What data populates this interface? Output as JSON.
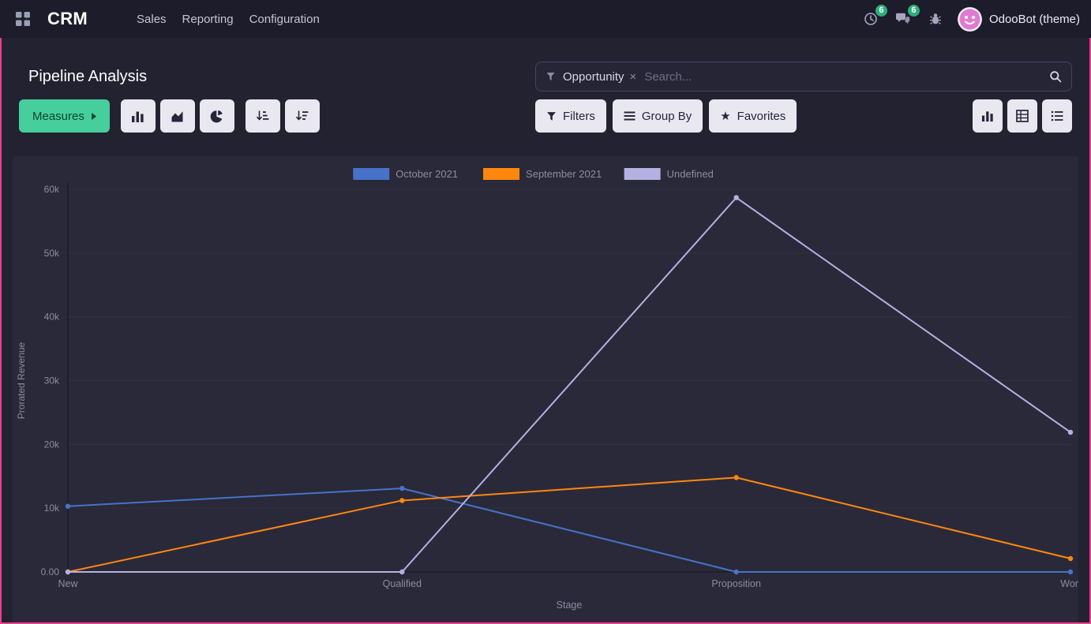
{
  "navbar": {
    "app_name": "CRM",
    "menu": [
      "Sales",
      "Reporting",
      "Configuration"
    ],
    "activities_count": "6",
    "messages_count": "6",
    "user_name": "OdooBot (theme)"
  },
  "control_panel": {
    "title": "Pipeline Analysis",
    "measures_label": "Measures",
    "filters_label": "Filters",
    "group_by_label": "Group By",
    "favorites_label": "Favorites"
  },
  "search": {
    "facet_label": "Opportunity",
    "placeholder": "Search..."
  },
  "colors": {
    "accent_green": "#46cf9d",
    "frame_pink": "#ee3d8f",
    "badge_green": "#2eae7c",
    "panel_bg": "#2a2939",
    "navbar_bg": "#1d1c2a"
  },
  "chart_data": {
    "type": "line",
    "title": "",
    "xlabel": "Stage",
    "ylabel": "Prorated Revenue",
    "categories": [
      "New",
      "Qualified",
      "Proposition",
      "Won"
    ],
    "series": [
      {
        "name": "October 2021",
        "color": "#4673c8",
        "values": [
          10300,
          13100,
          0,
          0
        ]
      },
      {
        "name": "September 2021",
        "color": "#ff870f",
        "values": [
          0,
          11200,
          14800,
          2100
        ]
      },
      {
        "name": "Undefined",
        "color": "#b5b1e2",
        "values": [
          0,
          0,
          58700,
          21900
        ]
      }
    ],
    "ylim": [
      0,
      60000
    ],
    "yticks": [
      {
        "v": 0,
        "label": "0.00"
      },
      {
        "v": 10000,
        "label": "10k"
      },
      {
        "v": 20000,
        "label": "20k"
      },
      {
        "v": 30000,
        "label": "30k"
      },
      {
        "v": 40000,
        "label": "40k"
      },
      {
        "v": 50000,
        "label": "50k"
      },
      {
        "v": 60000,
        "label": "60k"
      }
    ],
    "legend_position": "top",
    "grid": false
  }
}
